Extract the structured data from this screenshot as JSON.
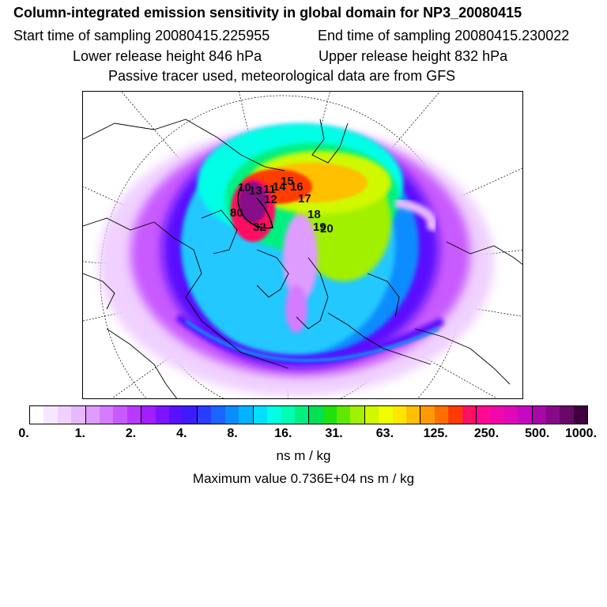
{
  "header": {
    "title": "Column-integrated emission sensitivity in global domain for NP3_20080415",
    "start_time": "Start time of sampling 20080415.225955",
    "end_time": "End time of sampling 20080415.230022",
    "lower_release": "Lower release height  846 hPa",
    "upper_release": "Upper release height  832 hPa",
    "tracer_note": "Passive tracer used, meteorological data are from GFS"
  },
  "map": {
    "projection": "polar stereographic (north pole)",
    "track_labels": [
      {
        "text": "10"
      },
      {
        "text": "11"
      },
      {
        "text": "12"
      },
      {
        "text": "13"
      },
      {
        "text": "14"
      },
      {
        "text": "15"
      },
      {
        "text": "16"
      },
      {
        "text": "17"
      },
      {
        "text": "18"
      },
      {
        "text": "19"
      },
      {
        "text": "20"
      },
      {
        "text": "80"
      },
      {
        "text": "32"
      }
    ]
  },
  "colorbar": {
    "colors": [
      "#ffffff",
      "#f7e6ff",
      "#f0d0ff",
      "#e8b8ff",
      "#df9cff",
      "#d47cff",
      "#c85aff",
      "#b93aff",
      "#a11eff",
      "#7c14ff",
      "#5a10ff",
      "#3c1cff",
      "#2a3cff",
      "#1a64ff",
      "#0a8cff",
      "#00b4ff",
      "#00e0ff",
      "#00ffe6",
      "#00ffb4",
      "#00f080",
      "#00e050",
      "#20e010",
      "#60e800",
      "#a0f000",
      "#d0f800",
      "#f0ff00",
      "#ffe600",
      "#ffc000",
      "#ff9a00",
      "#ff6e00",
      "#ff3c00",
      "#ff1060",
      "#ff0a90",
      "#f008a8",
      "#e008b8",
      "#c808c0",
      "#a808a8",
      "#880888",
      "#680868",
      "#400040"
    ],
    "tick_labels": [
      "0.",
      "1.",
      "2.",
      "4.",
      "8.",
      "16.",
      "31.",
      "63.",
      "125.",
      "250.",
      "500.",
      "1000."
    ],
    "units": "ns m / kg",
    "max_value": "Maximum value  0.736E+04 ns m / kg"
  }
}
